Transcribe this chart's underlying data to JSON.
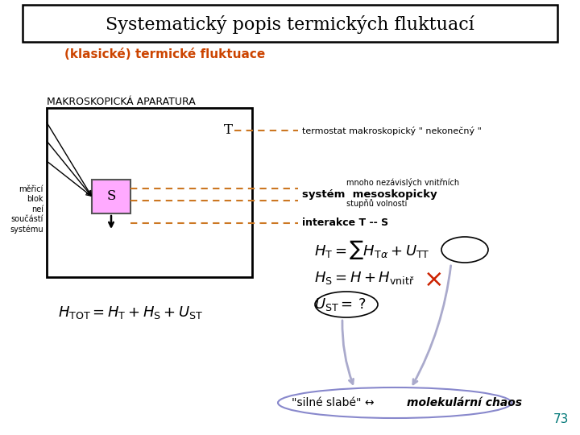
{
  "bg_color": "#ffffff",
  "title": "Systematický popis termických fluktuací",
  "title_fontsize": 16,
  "subtitle": "(klasické) termické fluktuace",
  "subtitle_color": "#cc4400",
  "subtitle_fontsize": 11,
  "macro_label": "MAKROSKOPICKÁ APARATURA",
  "macro_label_fontsize": 9,
  "T_label": "T",
  "S_label": "S",
  "merici_text": "měřicí\nblok\nneí\nsoučástí\nsystému",
  "dashed_color": "#cc7722",
  "page_number": "73",
  "page_color": "#007777",
  "ann1": "termostat makroskopický \" nekonečný \"",
  "ann2a": "mnoho nezávislých vnitřních",
  "ann2b": "stupňů volnosti",
  "ann2bold": "systém  mesoskopicky",
  "ann3": "interakce T -- S",
  "bottom_ellipse_color": "#8888cc",
  "arrow_color": "#aaaacc"
}
